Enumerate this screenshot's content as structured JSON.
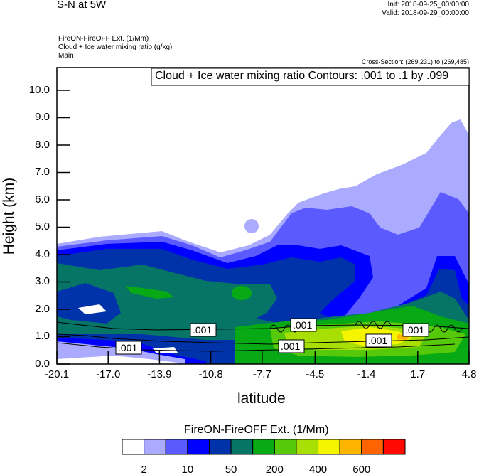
{
  "header": {
    "title": "S-N at 5W",
    "init": "Init: 2018-09-25_00:00:00",
    "valid": "Valid: 2018-09-29_00:00:00",
    "field1": "FireON-FireOFF Ext.   (1/Mm)",
    "field2": "Cloud + Ice water mixing ratio   (g/kg)",
    "field3": "Main",
    "cross_section": "Cross-Section: (269,231) to (269,485)"
  },
  "chart_data": {
    "type": "heatmap",
    "title": "S-N at 5W",
    "xlabel": "latitude",
    "ylabel": "Height (km)",
    "xlim": [
      -20.1,
      4.8
    ],
    "ylim": [
      0,
      10.83
    ],
    "xticks": [
      "-20.1",
      "-17.0",
      "-13.9",
      "-10.8",
      "-7.7",
      "-4.5",
      "-1.4",
      "1.7",
      "4.8"
    ],
    "xtick_values": [
      -20.1,
      -17.0,
      -13.9,
      -10.8,
      -7.7,
      -4.5,
      -1.4,
      1.7,
      4.8
    ],
    "yticks": [
      "0.0",
      "1.0",
      "2.0",
      "3.0",
      "4.0",
      "5.0",
      "6.0",
      "7.0",
      "8.0",
      "9.0",
      "10.0"
    ],
    "ytick_values": [
      0,
      1,
      2,
      3,
      4,
      5,
      6,
      7,
      8,
      9,
      10
    ],
    "contour_info": "Cloud + Ice water mixing ratio Contours: .001 to .1 by .099",
    "contour_labels": [
      ".001",
      ".001",
      ".001",
      ".001",
      ".001",
      ".001",
      ".001"
    ],
    "colorbar": {
      "title": "FireON-FireOFF Ext.  (1/Mm)",
      "colors": [
        "#ffffff",
        "#aaaaff",
        "#5a5aff",
        "#0000ff",
        "#0033aa",
        "#077565",
        "#07aa14",
        "#55c90a",
        "#a8e005",
        "#f5f500",
        "#ffb400",
        "#ff6400",
        "#ff0a00"
      ],
      "labels": [
        "2",
        "10",
        "50",
        "200",
        "400",
        "600"
      ]
    }
  }
}
